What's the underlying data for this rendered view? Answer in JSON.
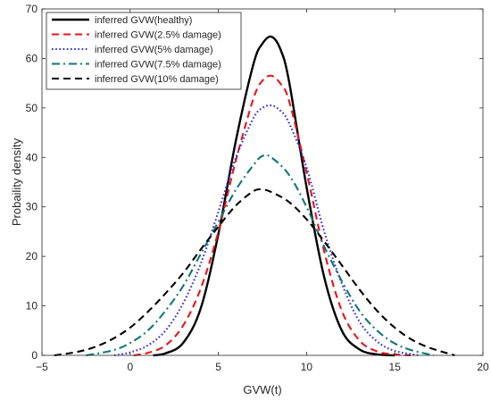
{
  "chart_data": {
    "type": "line",
    "title": "",
    "xlabel": "GVW(t)",
    "ylabel": "Probaility density",
    "xlim": [
      -5,
      20
    ],
    "ylim": [
      0,
      70
    ],
    "xticks": [
      -5,
      0,
      5,
      10,
      15,
      20
    ],
    "yticks": [
      0,
      10,
      20,
      30,
      40,
      50,
      60,
      70
    ],
    "xtick_labels": [
      "−5",
      "0",
      "5",
      "10",
      "15",
      "20"
    ],
    "ytick_labels": [
      "0",
      "10",
      "20",
      "30",
      "40",
      "50",
      "60",
      "70"
    ],
    "grid": false,
    "legend_position": "top-left",
    "series": [
      {
        "name": "inferred GVW(healthy)",
        "color": "#000000",
        "style": "solid",
        "x": [
          1.3,
          2,
          3,
          4,
          5,
          6,
          7,
          7.5,
          8,
          8.5,
          9,
          10,
          11,
          12,
          13,
          14,
          15
        ],
        "y": [
          0,
          0.4,
          2.5,
          9.5,
          24.5,
          43.5,
          59,
          63,
          64.4,
          62,
          55.5,
          34,
          15.8,
          5,
          1.2,
          0.2,
          0
        ]
      },
      {
        "name": "inferred GVW(2.5% damage)",
        "color": "#e8141c",
        "style": "dashed",
        "x": [
          0.2,
          1,
          2,
          3,
          4,
          5,
          6,
          7,
          7.5,
          8,
          8.5,
          9,
          10,
          11,
          12,
          13,
          14,
          15,
          15.9
        ],
        "y": [
          0,
          0.5,
          2,
          6,
          13.5,
          25,
          39.5,
          52,
          55.5,
          56.5,
          55,
          51.5,
          37,
          21,
          9,
          3,
          0.8,
          0.2,
          0
        ]
      },
      {
        "name": "inferred GVW(5% damage)",
        "color": "#2d2be3",
        "style": "dotted",
        "x": [
          -0.9,
          0,
          1,
          2,
          3,
          4,
          5,
          6,
          7,
          7.5,
          8,
          8.5,
          9,
          10,
          11,
          12,
          13,
          14,
          15,
          16.4
        ],
        "y": [
          0,
          0.6,
          2,
          5,
          10.5,
          18.5,
          29,
          40,
          48,
          50,
          50.5,
          49.5,
          47,
          38,
          25,
          14.5,
          6.8,
          2.8,
          0.9,
          0
        ]
      },
      {
        "name": "inferred GVW(7.5% damage)",
        "color": "#117777",
        "style": "dashdot",
        "x": [
          -2.5,
          -1,
          0,
          1,
          2,
          3,
          4,
          5,
          6,
          7,
          7.5,
          8,
          9,
          10,
          11,
          12,
          13,
          14,
          15,
          16,
          17.2
        ],
        "y": [
          0,
          1,
          2.5,
          5,
          9,
          14,
          20.5,
          27,
          33.5,
          38.5,
          40.3,
          40,
          36.5,
          30,
          22,
          15,
          9,
          5,
          2.4,
          1,
          0
        ]
      },
      {
        "name": "inferred GVW(10% damage)",
        "color": "#000000",
        "style": "dashed",
        "x": [
          -4.3,
          -3,
          -2,
          -1,
          0,
          1,
          2,
          3,
          4,
          5,
          6,
          7,
          7.5,
          8,
          9,
          10,
          11,
          12,
          13,
          14,
          15,
          16,
          17,
          18.4
        ],
        "y": [
          0,
          0.7,
          1.7,
          3.3,
          5.6,
          8.8,
          12.5,
          16.6,
          21.4,
          26,
          30.3,
          33.2,
          33.5,
          33,
          31,
          27.5,
          23,
          18.2,
          13.3,
          9,
          5.6,
          3.1,
          1.5,
          0
        ]
      }
    ]
  }
}
